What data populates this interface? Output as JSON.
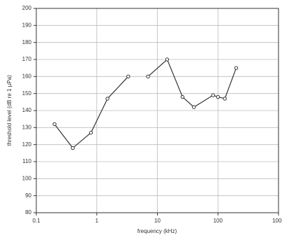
{
  "chart_data": {
    "type": "line",
    "x_label": "frequency (kHz)",
    "y_label": "threshold level (dB re 1 µPa)",
    "x": [
      0.2,
      0.4,
      0.8,
      1.5,
      3.3,
      null,
      7,
      14.5,
      26,
      40,
      83,
      100,
      130,
      200
    ],
    "series": [
      {
        "name": "threshold",
        "color": "#333333",
        "values": [
          132,
          118,
          127,
          147,
          160,
          null,
          160,
          170,
          148,
          142,
          149,
          148,
          147,
          165
        ]
      }
    ],
    "xlim": [
      0.1,
      1000
    ],
    "xticks": [
      0.1,
      1,
      10,
      100,
      1000
    ],
    "log_x": true,
    "ylim": [
      80,
      200
    ],
    "yticks": [
      80,
      90,
      100,
      110,
      120,
      130,
      140,
      150,
      160,
      170,
      180,
      190,
      200
    ],
    "grid": true
  }
}
